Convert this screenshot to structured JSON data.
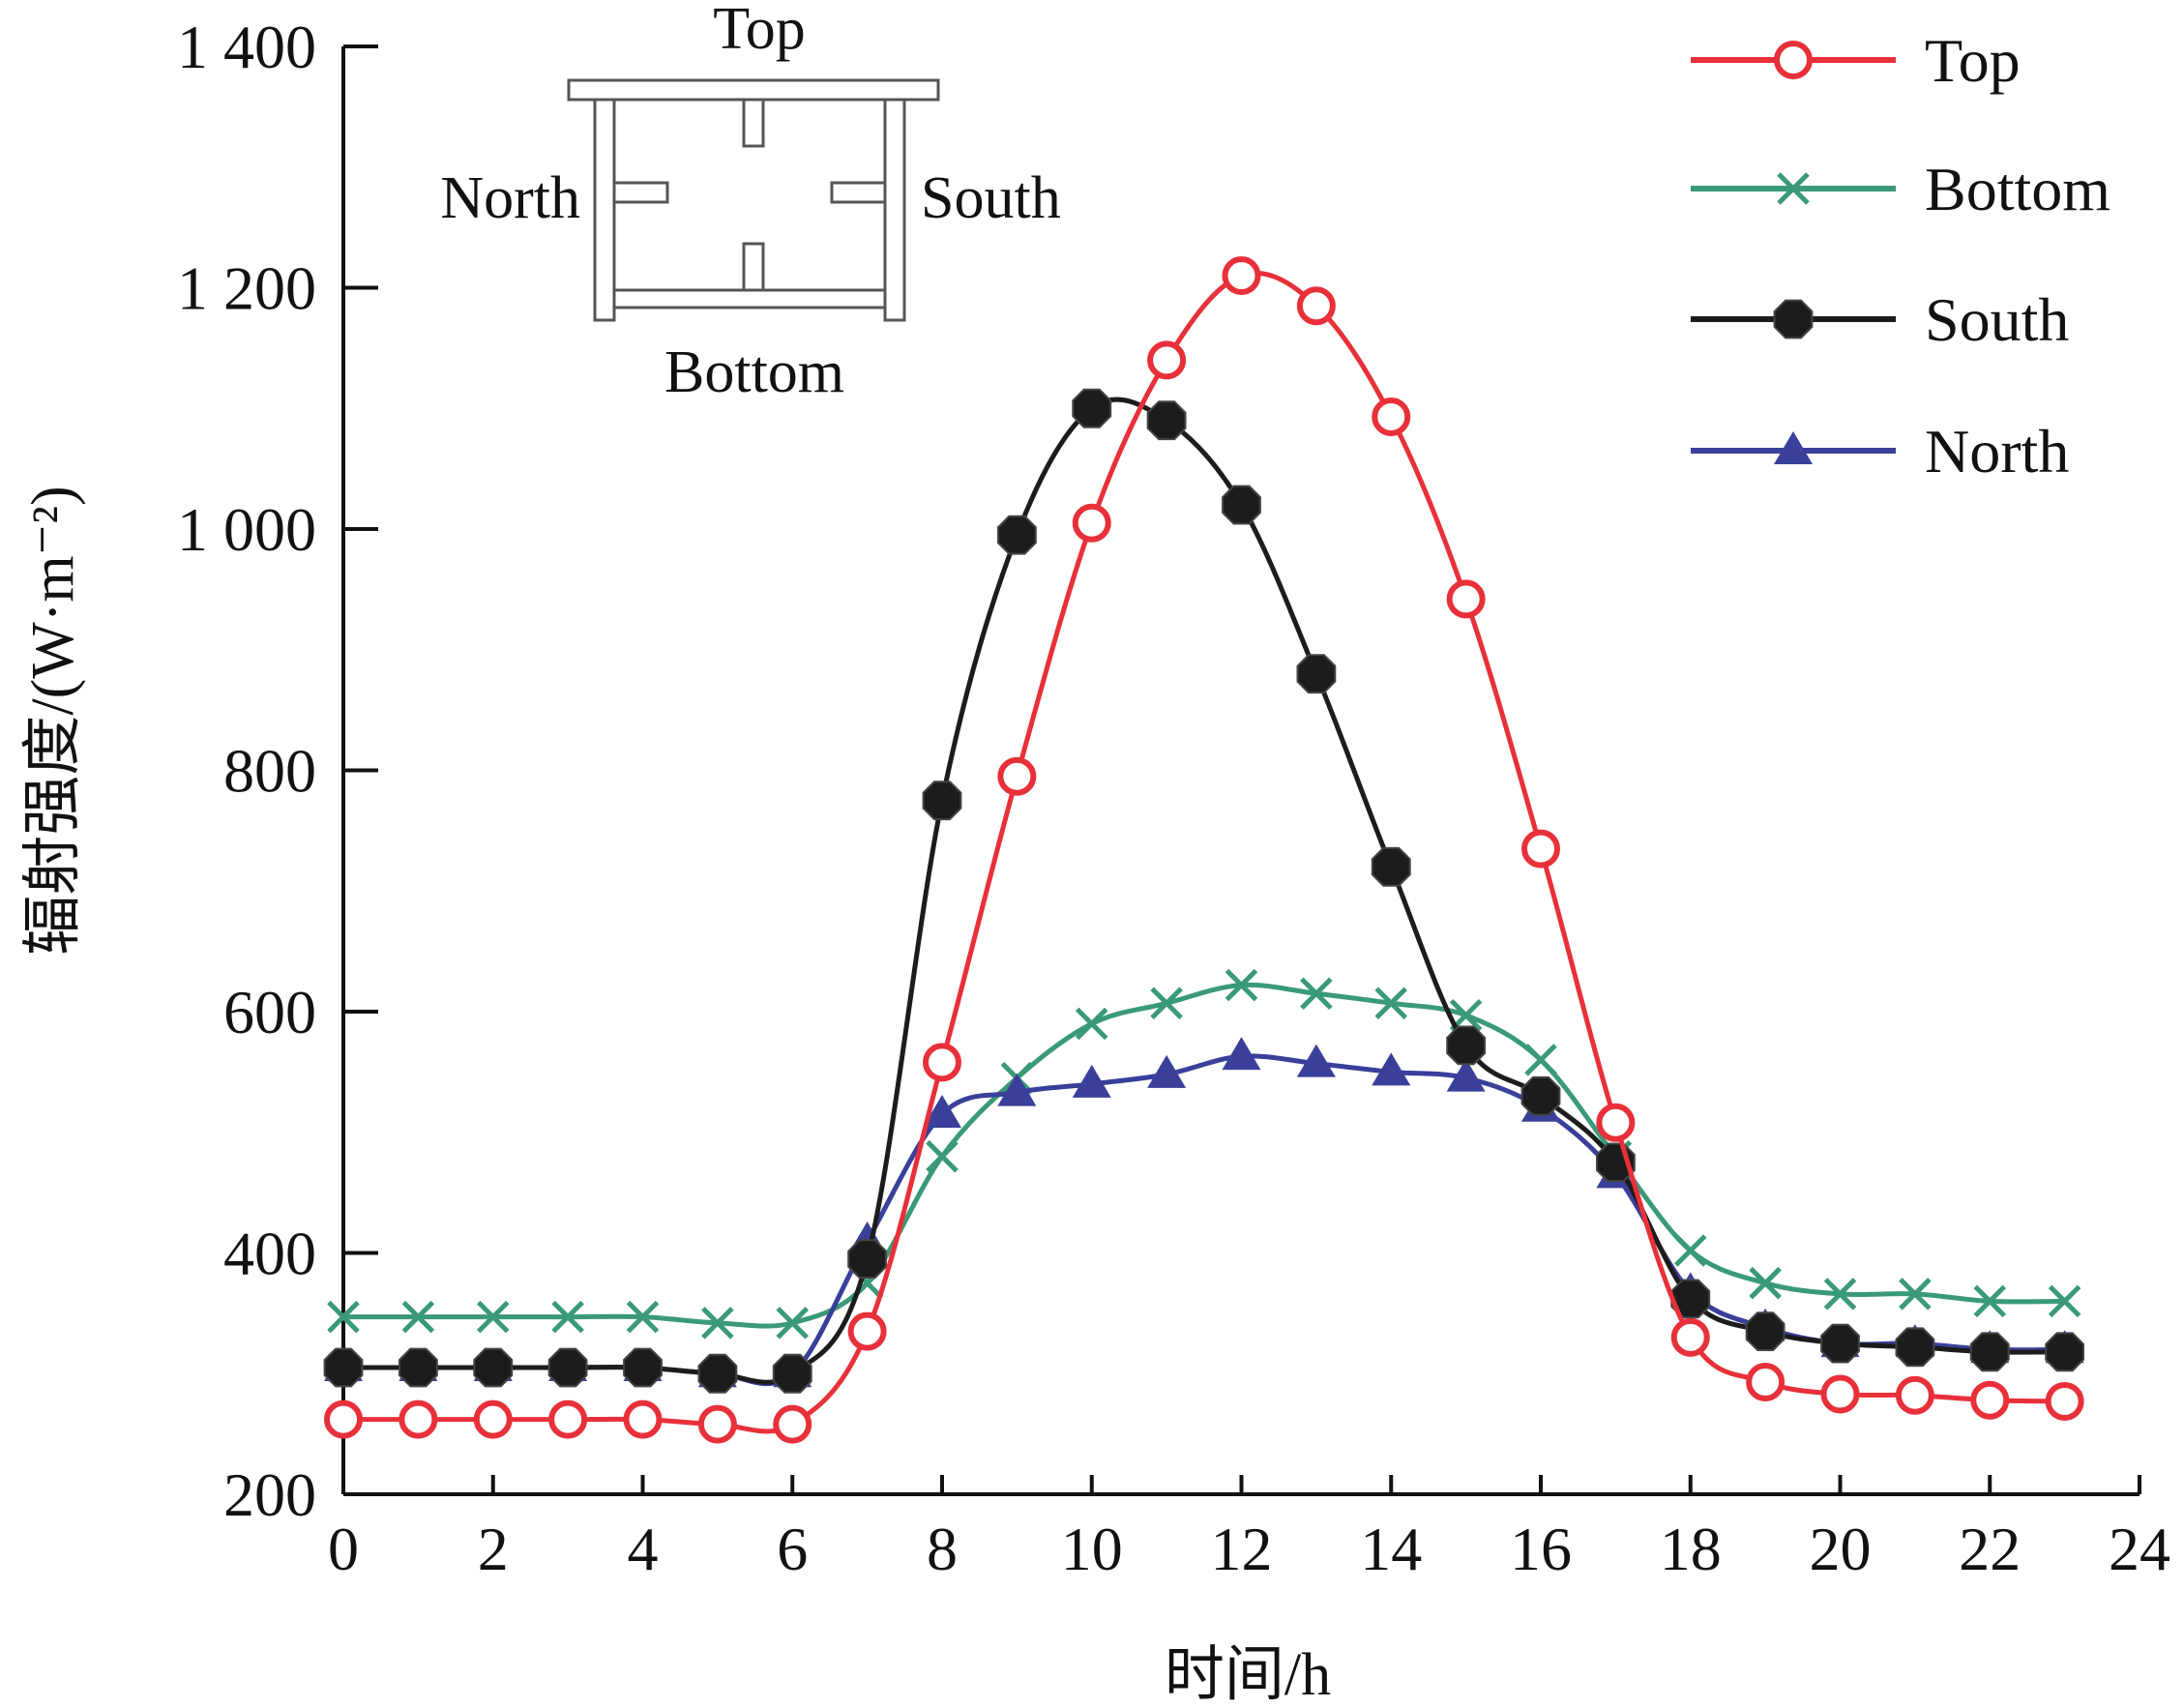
{
  "chart_data": {
    "type": "line",
    "xlabel": "时间/h",
    "ylabel": "辐射强度/(W·m⁻²)",
    "xlim": [
      0,
      24
    ],
    "ylim": [
      200,
      1400
    ],
    "x_ticks": [
      "0",
      "2",
      "4",
      "6",
      "8",
      "10",
      "12",
      "14",
      "16",
      "18",
      "20",
      "22",
      "24"
    ],
    "y_ticks": [
      "200",
      "400",
      "600",
      "800",
      "1 000",
      "1 200",
      "1 400"
    ],
    "grid": false,
    "legend_position": "top-right",
    "x": [
      0,
      1,
      2,
      3,
      4,
      5,
      6,
      7,
      8,
      9,
      10,
      11,
      12,
      13,
      14,
      15,
      16,
      17,
      18,
      19,
      20,
      21,
      22,
      23
    ],
    "series": [
      {
        "name": "Top",
        "color": "#e8303a",
        "marker": "open-circle",
        "values": [
          262,
          262,
          262,
          262,
          262,
          258,
          258,
          335,
          558,
          795,
          1005,
          1140,
          1210,
          1185,
          1093,
          942,
          735,
          508,
          330,
          293,
          283,
          282,
          278,
          277
        ]
      },
      {
        "name": "Bottom",
        "color": "#3a9a78",
        "marker": "x",
        "values": [
          347,
          347,
          347,
          347,
          347,
          342,
          342,
          375,
          480,
          545,
          590,
          607,
          622,
          615,
          607,
          597,
          560,
          480,
          402,
          375,
          366,
          366,
          360,
          360
        ]
      },
      {
        "name": "South",
        "color": "#1c1c1c",
        "marker": "filled-octagon",
        "values": [
          305,
          305,
          305,
          305,
          305,
          300,
          300,
          395,
          775,
          995,
          1100,
          1090,
          1020,
          880,
          720,
          572,
          530,
          475,
          362,
          335,
          325,
          322,
          318,
          318
        ]
      },
      {
        "name": "North",
        "color": "#3a3f9a",
        "marker": "filled-triangle",
        "values": [
          305,
          305,
          305,
          305,
          305,
          300,
          300,
          410,
          515,
          533,
          540,
          548,
          563,
          557,
          550,
          545,
          520,
          465,
          368,
          338,
          325,
          325,
          320,
          320
        ]
      }
    ],
    "inset": {
      "labels": {
        "top": "Top",
        "bottom": "Bottom",
        "north": "North",
        "south": "South"
      }
    }
  }
}
